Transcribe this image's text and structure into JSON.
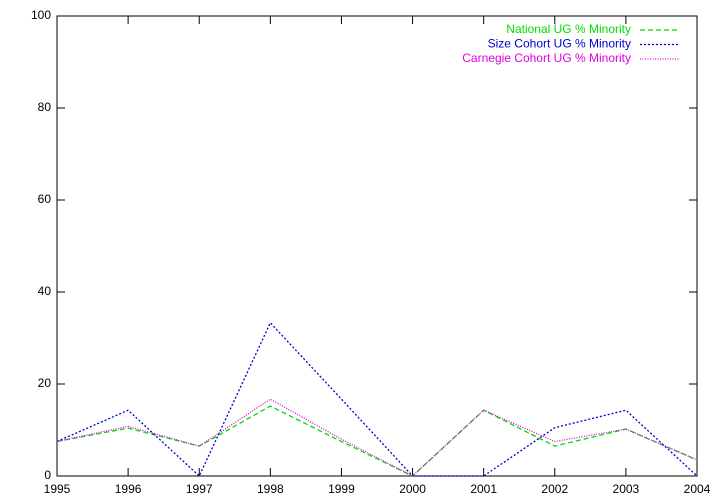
{
  "chart_data": {
    "type": "line",
    "x": [
      1995,
      1996,
      1997,
      1998,
      1999,
      2000,
      2001,
      2002,
      2003,
      2004
    ],
    "series": [
      {
        "name": "National UG % Minority",
        "color": "#00dd00",
        "values": [
          7.5,
          10.4,
          6.5,
          15.2,
          7.5,
          0,
          14.3,
          6.5,
          10.2,
          3.5
        ]
      },
      {
        "name": "Size Cohort UG % Minority",
        "color": "#0000cc",
        "values": [
          7.5,
          14.3,
          0,
          33.3,
          16.7,
          0,
          0,
          10.5,
          14.3,
          0
        ]
      },
      {
        "name": "Carnegie Cohort UG % Minority",
        "color": "#e000e0",
        "values": [
          7.5,
          10.8,
          6.5,
          16.7,
          8,
          0,
          14.3,
          7.5,
          10.2,
          3.5
        ]
      }
    ],
    "xlim": [
      1995,
      2004
    ],
    "xticks": [
      1995,
      1996,
      1997,
      1998,
      1999,
      2000,
      2001,
      2002,
      2003,
      2004
    ],
    "ylim": [
      0,
      100
    ],
    "yticks": [
      0,
      20,
      40,
      60,
      80,
      100
    ],
    "legend": "top-right"
  }
}
